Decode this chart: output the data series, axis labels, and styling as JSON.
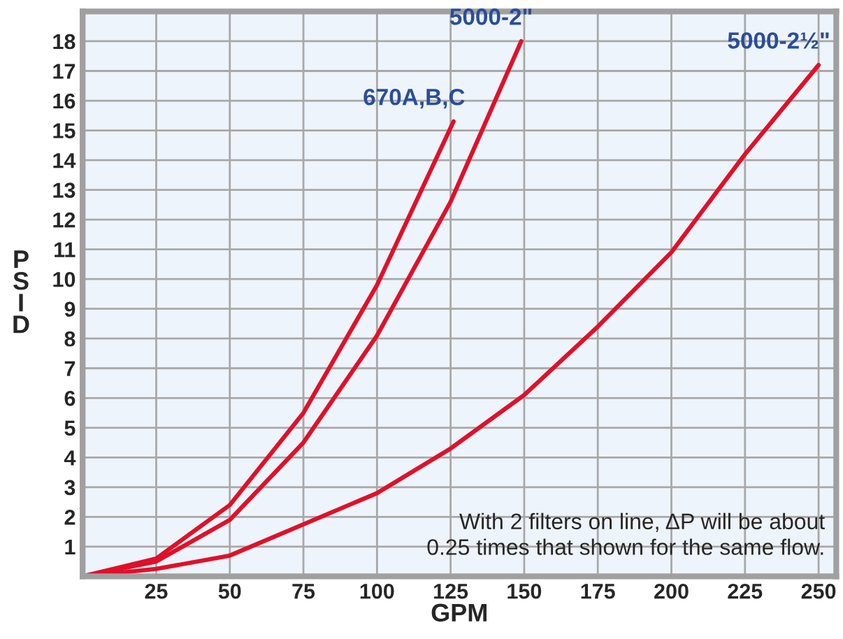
{
  "chart_data": {
    "type": "line",
    "xlabel": "GPM",
    "ylabel": "PSID",
    "xlim": [
      0,
      256
    ],
    "ylim": [
      0,
      19
    ],
    "xticks": [
      25,
      50,
      75,
      100,
      125,
      150,
      175,
      200,
      225,
      250
    ],
    "yticks": [
      1,
      2,
      3,
      4,
      5,
      6,
      7,
      8,
      9,
      10,
      11,
      12,
      13,
      14,
      15,
      16,
      17,
      18
    ],
    "grid": true,
    "marker": "none",
    "line_style": "solid",
    "series": [
      {
        "name": "670A,B,C",
        "color": "#e0102a",
        "x": [
          0,
          25,
          50,
          75,
          100,
          126
        ],
        "values": [
          0,
          0.6,
          2.4,
          5.5,
          9.8,
          15.3
        ]
      },
      {
        "name": "5000-2\"",
        "color": "#e0102a",
        "x": [
          0,
          25,
          50,
          75,
          100,
          125,
          149
        ],
        "values": [
          0,
          0.5,
          1.9,
          4.5,
          8.1,
          12.6,
          18.0
        ]
      },
      {
        "name": "5000-2½\"",
        "color": "#e0102a",
        "x": [
          0,
          25,
          50,
          100,
          125,
          150,
          175,
          200,
          225,
          250
        ],
        "values": [
          0,
          0.25,
          0.7,
          2.8,
          4.3,
          6.1,
          8.4,
          10.9,
          14.2,
          17.2
        ]
      }
    ],
    "annotations": [
      "With 2 filters on line, ΔP will be about\n0.25 times that shown for the same flow."
    ]
  }
}
